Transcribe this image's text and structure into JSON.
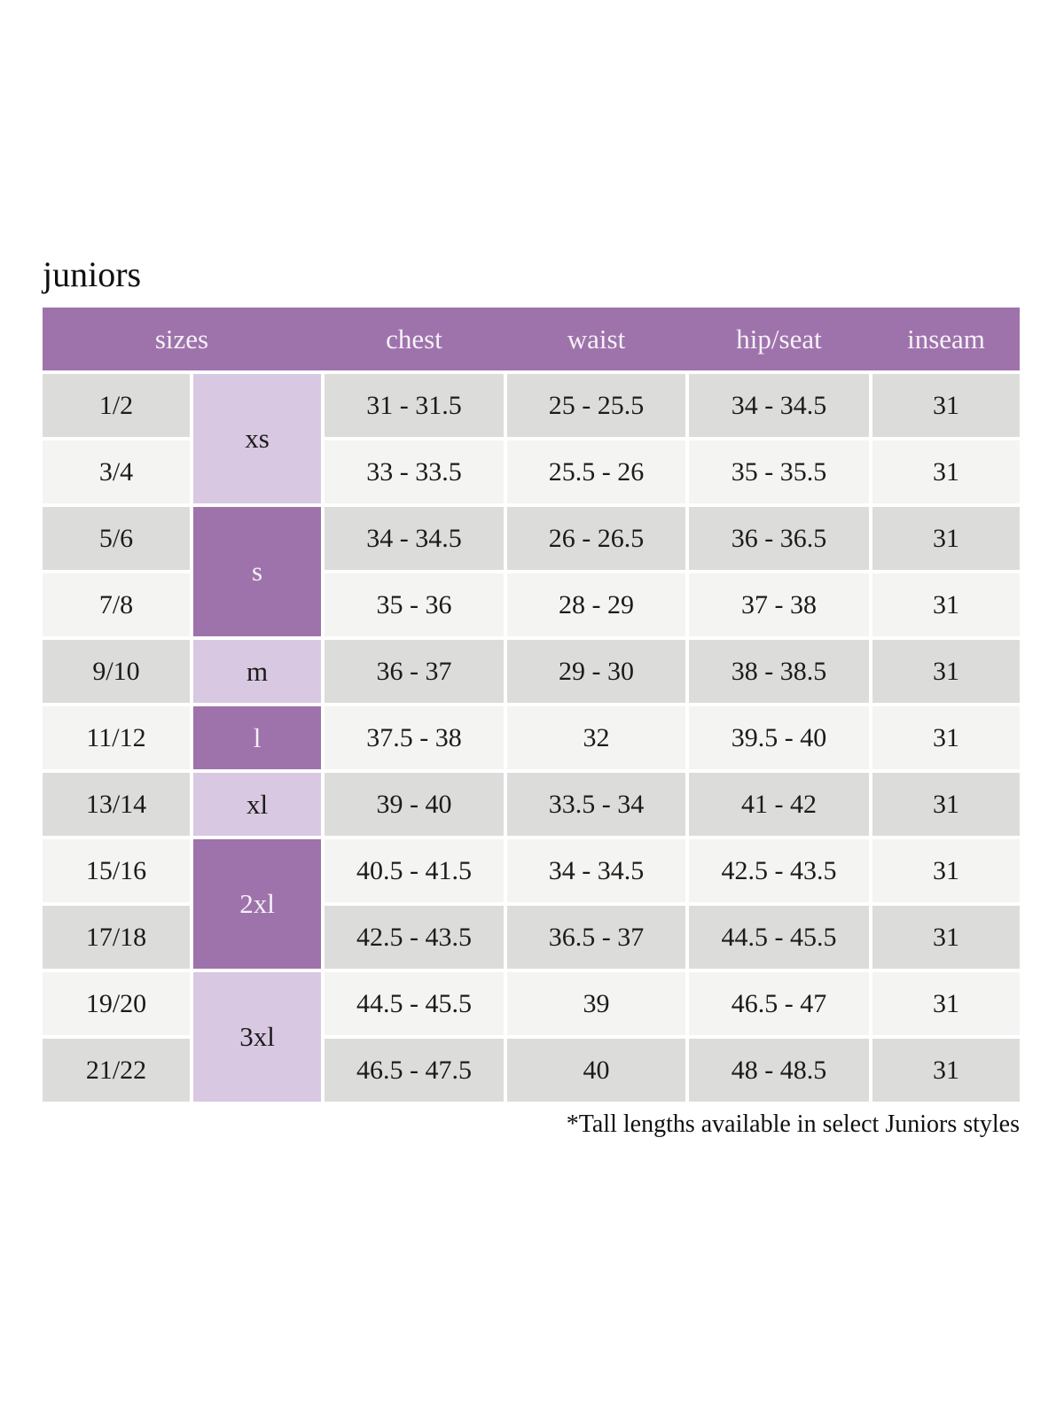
{
  "page": {
    "title": "juniors",
    "footnote": "*Tall lengths available in select Juniors styles"
  },
  "colors": {
    "header_bg": "#9e73ab",
    "letter_dark_bg": "#9e73ab",
    "letter_light_bg": "#d9c8e1",
    "row_gray_bg": "#dcdcdb",
    "row_light_bg": "#f4f4f3",
    "header_text": "#f6f0f8",
    "body_text": "#1b1b1b"
  },
  "table": {
    "header": {
      "sizes": "sizes",
      "chest": "chest",
      "waist": "waist",
      "hip_seat": "hip/seat",
      "inseam": "inseam"
    },
    "size_groups": [
      {
        "label": "xs",
        "rows_spanned": 2,
        "shade": "light"
      },
      {
        "label": "s",
        "rows_spanned": 2,
        "shade": "dark"
      },
      {
        "label": "m",
        "rows_spanned": 1,
        "shade": "light"
      },
      {
        "label": "l",
        "rows_spanned": 1,
        "shade": "dark"
      },
      {
        "label": "xl",
        "rows_spanned": 1,
        "shade": "light"
      },
      {
        "label": "2xl",
        "rows_spanned": 2,
        "shade": "dark"
      },
      {
        "label": "3xl",
        "rows_spanned": 2,
        "shade": "light"
      }
    ],
    "rows": [
      {
        "size": "1/2",
        "chest": "31 - 31.5",
        "waist": "25 - 25.5",
        "hip_seat": "34 - 34.5",
        "inseam": "31"
      },
      {
        "size": "3/4",
        "chest": "33 - 33.5",
        "waist": "25.5 - 26",
        "hip_seat": "35 - 35.5",
        "inseam": "31"
      },
      {
        "size": "5/6",
        "chest": "34 - 34.5",
        "waist": "26 - 26.5",
        "hip_seat": "36 - 36.5",
        "inseam": "31"
      },
      {
        "size": "7/8",
        "chest": "35 - 36",
        "waist": "28 - 29",
        "hip_seat": "37 - 38",
        "inseam": "31"
      },
      {
        "size": "9/10",
        "chest": "36 - 37",
        "waist": "29 - 30",
        "hip_seat": "38 - 38.5",
        "inseam": "31"
      },
      {
        "size": "11/12",
        "chest": "37.5 - 38",
        "waist": "32",
        "hip_seat": "39.5 - 40",
        "inseam": "31"
      },
      {
        "size": "13/14",
        "chest": "39 - 40",
        "waist": "33.5 - 34",
        "hip_seat": "41 - 42",
        "inseam": "31"
      },
      {
        "size": "15/16",
        "chest": "40.5 - 41.5",
        "waist": "34 - 34.5",
        "hip_seat": "42.5 - 43.5",
        "inseam": "31"
      },
      {
        "size": "17/18",
        "chest": "42.5 - 43.5",
        "waist": "36.5 - 37",
        "hip_seat": "44.5 - 45.5",
        "inseam": "31"
      },
      {
        "size": "19/20",
        "chest": "44.5 - 45.5",
        "waist": "39",
        "hip_seat": "46.5 - 47",
        "inseam": "31"
      },
      {
        "size": "21/22",
        "chest": "46.5 - 47.5",
        "waist": "40",
        "hip_seat": "48 - 48.5",
        "inseam": "31"
      }
    ]
  }
}
